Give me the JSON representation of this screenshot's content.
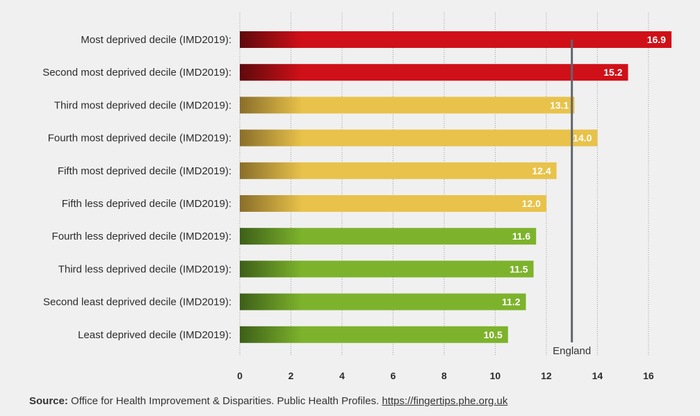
{
  "chart_data": {
    "type": "bar",
    "orientation": "horizontal",
    "categories": [
      "Most deprived decile (IMD2019):",
      "Second most deprived decile (IMD2019):",
      "Third most deprived decile (IMD2019):",
      "Fourth most deprived decile (IMD2019):",
      "Fifth most deprived decile (IMD2019):",
      "Fifth less deprived decile (IMD2019):",
      "Fourth less deprived decile (IMD2019):",
      "Third less deprived decile (IMD2019):",
      "Second least deprived decile (IMD2019):",
      "Least deprived decile (IMD2019):"
    ],
    "values": [
      16.9,
      15.2,
      13.1,
      14.0,
      12.4,
      12.0,
      11.6,
      11.5,
      11.2,
      10.5
    ],
    "value_labels": [
      "16.9",
      "15.2",
      "13.1",
      "14.0",
      "12.4",
      "12.0",
      "11.6",
      "11.5",
      "11.2",
      "10.5"
    ],
    "bar_colors": [
      "#d01018",
      "#d01018",
      "#e8c24a",
      "#e8c24a",
      "#e8c24a",
      "#e8c24a",
      "#7db32c",
      "#7db32c",
      "#7db32c",
      "#7db32c"
    ],
    "gradient_start_colors": [
      "#5e0a0c",
      "#5e0a0c",
      "#8a6e2a",
      "#8a6e2a",
      "#8a6e2a",
      "#8a6e2a",
      "#3d5f18",
      "#3d5f18",
      "#3d5f18",
      "#3d5f18"
    ],
    "x_ticks": [
      0,
      2,
      4,
      6,
      8,
      10,
      12,
      14,
      16
    ],
    "xlim": [
      0,
      17.2
    ],
    "grid": true,
    "reference_line": {
      "label": "England",
      "value": 13.0,
      "color": "#5f6670"
    }
  },
  "source": {
    "label": "Source:",
    "text": " Office for Health Improvement & Disparities. Public Health Profiles. ",
    "link": "https://fingertips.phe.org.uk"
  }
}
